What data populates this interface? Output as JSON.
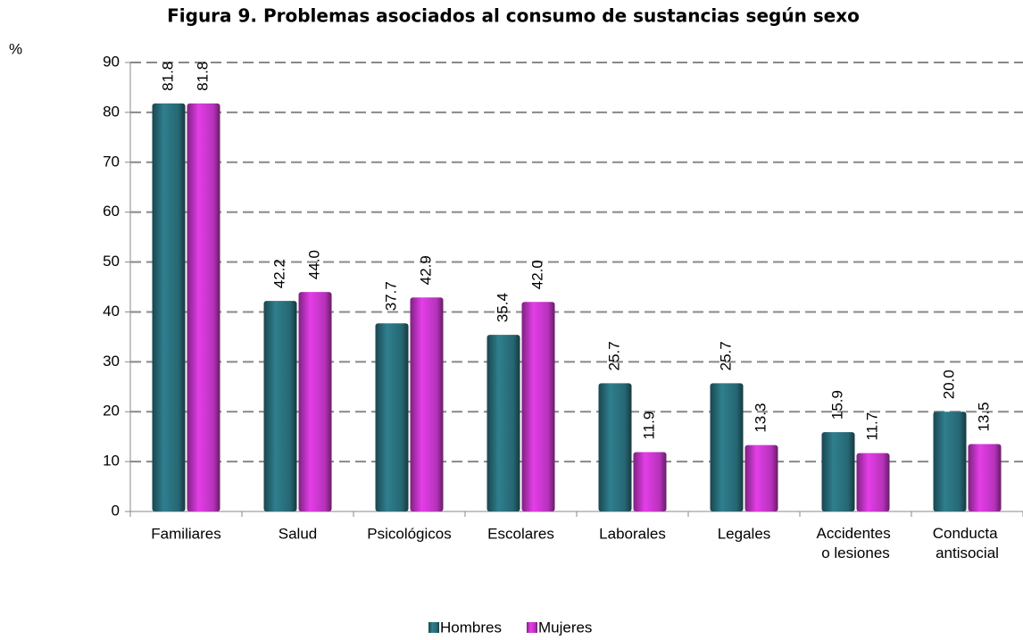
{
  "chart_data": {
    "type": "bar",
    "title": "Figura 9. Problemas asociados al consumo de sustancias según sexo",
    "y_label": "%",
    "categories": [
      "Familiares",
      "Salud",
      "Psicológicos",
      "Escolares",
      "Laborales",
      "Legales",
      "Accidentes o lesiones",
      "Conducta antisocial"
    ],
    "series": [
      {
        "name": "Hombres",
        "color": "#2f7f8f",
        "values": [
          81.8,
          42.2,
          37.7,
          35.4,
          25.7,
          25.7,
          15.9,
          20.0
        ],
        "value_labels": [
          "81.8",
          "42.2",
          "37.7",
          "35.4",
          "25.7",
          "25.7",
          "15.9",
          "20.0"
        ]
      },
      {
        "name": "Mujeres",
        "color": "#e43ee8",
        "values": [
          81.8,
          44.0,
          42.9,
          42.0,
          11.9,
          13.3,
          11.7,
          13.5
        ],
        "value_labels": [
          "81.8",
          "44.0",
          "42.9",
          "42.0",
          "11.9",
          "13.3",
          "11.7",
          "13.5"
        ]
      }
    ],
    "ylim": [
      0,
      90
    ],
    "yticks": [
      0,
      10,
      20,
      30,
      40,
      50,
      60,
      70,
      80,
      90
    ],
    "grid": true,
    "legend": "bottom"
  }
}
